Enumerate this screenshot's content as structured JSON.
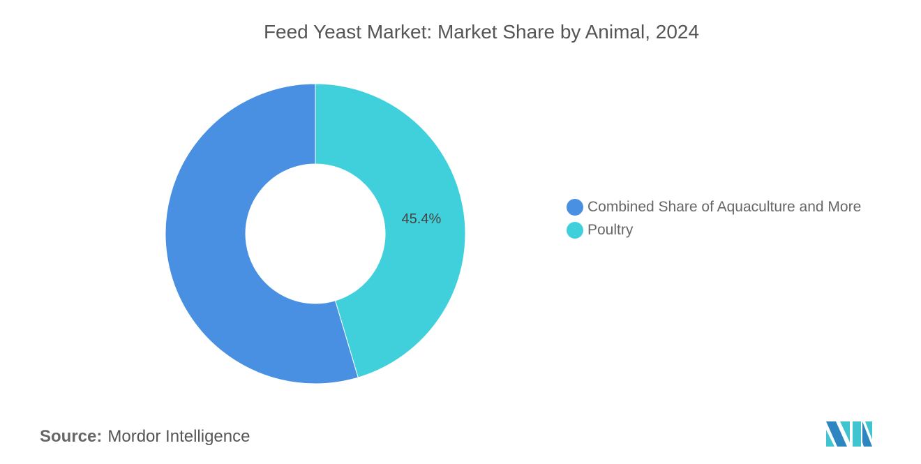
{
  "chart_data": {
    "type": "pie",
    "donut": true,
    "title": "Feed Yeast Market: Market Share by Animal, 2024",
    "slices": [
      {
        "label": "Poultry",
        "value": 45.4,
        "color": "#40D0DB",
        "data_label": "45.4%"
      },
      {
        "label": "Combined Share of Aquaculture and More",
        "value": 54.6,
        "color": "#4A90E2",
        "data_label": ""
      }
    ],
    "legend": {
      "placement": "right",
      "entries": [
        {
          "label": "Combined Share of Aquaculture and More",
          "color": "#4A90E2"
        },
        {
          "label": "Poultry",
          "color": "#40D0DB"
        }
      ]
    }
  },
  "source": {
    "label": "Source:",
    "value": "Mordor Intelligence"
  },
  "logo": {
    "text": "Mordor Intelligence logo"
  }
}
